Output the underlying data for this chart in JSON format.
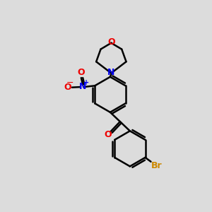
{
  "bg_color": "#dcdcdc",
  "bond_color": "#000000",
  "bond_width": 1.8,
  "N_color": "#0000ee",
  "O_color": "#ee0000",
  "Br_color": "#cc8800",
  "N_label": "N",
  "O_label": "O",
  "Br_label": "Br",
  "plus_label": "+",
  "minus_label": "−",
  "figsize": [
    3.0,
    3.0
  ],
  "dpi": 100
}
